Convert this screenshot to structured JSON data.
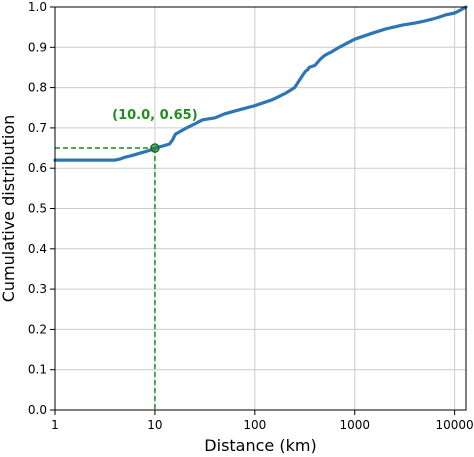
{
  "chart_data": {
    "type": "line",
    "xlabel": "Distance (km)",
    "ylabel": "Cumulative distribution",
    "xscale": "log",
    "xlim": [
      1,
      13000
    ],
    "ylim": [
      0,
      1.0
    ],
    "grid": true,
    "x_ticks": [
      1,
      10,
      100,
      1000,
      10000
    ],
    "x_tick_labels": [
      "1",
      "10",
      "100",
      "1000",
      "10000"
    ],
    "y_ticks": [
      0.0,
      0.1,
      0.2,
      0.3,
      0.4,
      0.5,
      0.6,
      0.7,
      0.8,
      0.9,
      1.0
    ],
    "y_tick_labels": [
      "0.0",
      "0.1",
      "0.2",
      "0.3",
      "0.4",
      "0.5",
      "0.6",
      "0.7",
      "0.8",
      "0.9",
      "1.0"
    ],
    "series": [
      {
        "color": "#2e75b6",
        "x": [
          1,
          2,
          4,
          4.5,
          5,
          6,
          7,
          8,
          9,
          10,
          12,
          14,
          15,
          16,
          20,
          25,
          30,
          40,
          50,
          70,
          100,
          150,
          200,
          250,
          300,
          320,
          340,
          350,
          400,
          450,
          500,
          600,
          700,
          1000,
          1500,
          2000,
          3000,
          4000,
          5000,
          6000,
          7000,
          8000,
          10000,
          11000,
          13000
        ],
        "y": [
          0.62,
          0.62,
          0.62,
          0.623,
          0.627,
          0.632,
          0.637,
          0.641,
          0.645,
          0.65,
          0.655,
          0.66,
          0.67,
          0.684,
          0.698,
          0.71,
          0.72,
          0.725,
          0.735,
          0.745,
          0.755,
          0.77,
          0.785,
          0.8,
          0.83,
          0.84,
          0.845,
          0.85,
          0.855,
          0.87,
          0.88,
          0.89,
          0.9,
          0.92,
          0.935,
          0.945,
          0.955,
          0.96,
          0.965,
          0.97,
          0.975,
          0.98,
          0.985,
          0.99,
          1.0
        ]
      }
    ],
    "annotation": {
      "x": 10.0,
      "y": 0.65,
      "label": "(10.0, 0.65)",
      "color": "#228b22"
    }
  }
}
